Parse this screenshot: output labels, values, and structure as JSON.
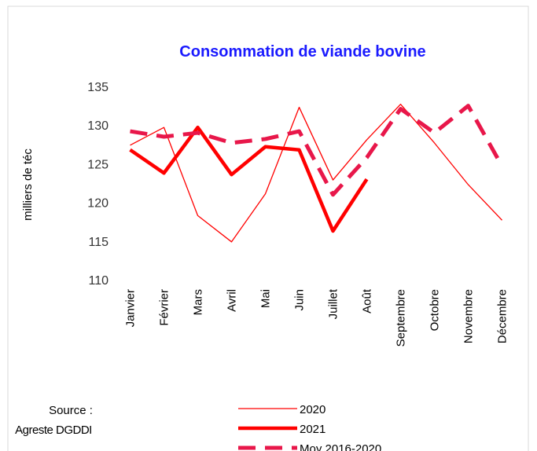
{
  "chart_data": {
    "type": "line",
    "title": "Consommation  de viande bovine",
    "y_label": "milliers de téc",
    "source": [
      "Source :",
      "Agreste DGDDI"
    ],
    "categories": [
      "Janvier",
      "Février",
      "Mars",
      "Avril",
      "Mai",
      "Juin",
      "Juillet",
      "Août",
      "Septembre",
      "Octobre",
      "Novembre",
      "Décembre"
    ],
    "series": [
      {
        "name": "2020",
        "color": "#ff0000",
        "width": 1.3,
        "dashed": false,
        "values": [
          127.5,
          129.8,
          118.4,
          115.0,
          121.2,
          132.4,
          123.0,
          128.2,
          132.8,
          127.8,
          122.4,
          117.8
        ]
      },
      {
        "name": "2021",
        "color": "#ff0000",
        "width": 4.5,
        "dashed": false,
        "values": [
          126.9,
          123.9,
          129.8,
          123.7,
          127.3,
          126.9,
          116.4,
          123.1,
          null,
          null,
          null,
          null
        ]
      },
      {
        "name": "Moy 2016-2020",
        "color": "#e8174a",
        "width": 5,
        "dashed": true,
        "values": [
          129.3,
          128.6,
          129.1,
          127.8,
          128.3,
          129.3,
          121.1,
          125.9,
          132.2,
          129.1,
          132.6,
          124.8
        ]
      }
    ],
    "ylim": [
      110,
      135
    ],
    "yticks": [
      110,
      115,
      120,
      125,
      130,
      135
    ],
    "grid": false
  }
}
